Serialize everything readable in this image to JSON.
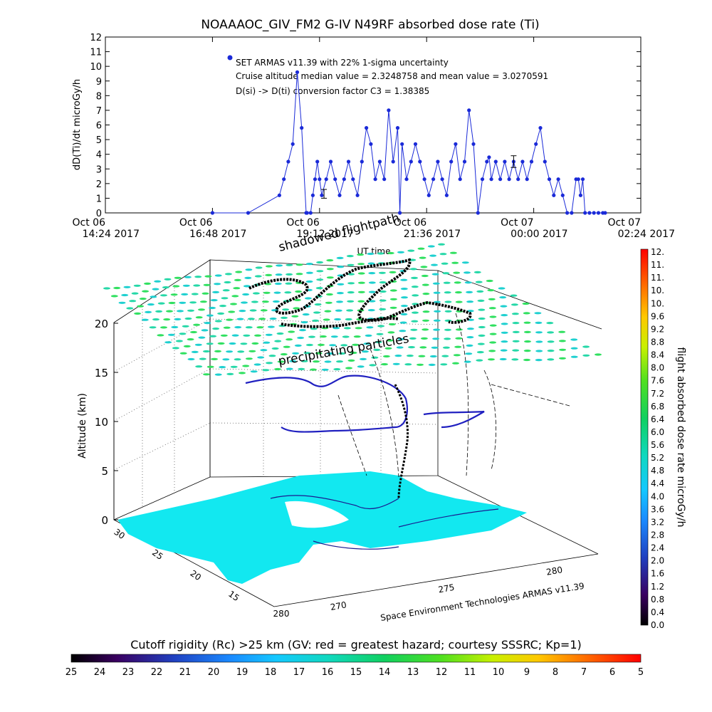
{
  "title": "NOAAAOC_GIV_FM2 G-IV    N49RF  absorbed dose rate (Ti)",
  "annotations": {
    "line1": "SET ARMAS v11.39 with 22% 1-sigma uncertainty",
    "line2": "Cruise altitude median value = 2.3248758 and mean value = 3.0270591",
    "line3": "D(si) -> D(ti) conversion factor C3 = 1.38385"
  },
  "colorbar_right_label": "flight absorbed dose rate microGy/h",
  "colorbar_right_ticks": [
    "0.0",
    "0.4",
    "0.8",
    "1.2",
    "1.6",
    "2.0",
    "2.4",
    "2.8",
    "3.2",
    "3.6",
    "4.0",
    "4.4",
    "4.8",
    "5.2",
    "5.6",
    "6.0",
    "6.4",
    "6.8",
    "7.2",
    "7.6",
    "8.0",
    "8.4",
    "8.8",
    "9.2",
    "9.6",
    "10.",
    "10.",
    "11.",
    "11.",
    "12."
  ],
  "colorbar_bottom_label": "Cutoff rigidity (Rc) >25 km (GV: red = greatest hazard; courtesy SSSRC; Kp=1)",
  "colorbar_bottom_ticks": [
    "25",
    "24",
    "23",
    "22",
    "21",
    "20",
    "19",
    "18",
    "17",
    "16",
    "15",
    "14",
    "13",
    "12",
    "11",
    "10",
    "9",
    "8",
    "7",
    "6",
    "5"
  ],
  "panel3d": {
    "label_shadowed": "shadowed flightpath",
    "label_particles": "precipitating particles",
    "z_label": "Altitude (km)",
    "z_ticks": [
      "0",
      "5",
      "10",
      "15",
      "20"
    ],
    "y_ticks": [
      "30",
      "25",
      "20",
      "15"
    ],
    "x_ticks": [
      "270",
      "275",
      "280"
    ],
    "x_tick_left": "280",
    "credit": "Space Environment Technologies ARMAS v11.39"
  },
  "chart_data": {
    "type": "scatter",
    "xlabel": "UT time",
    "ylabel": "dD(Ti)/dt microGy/h",
    "ylim": [
      0,
      12
    ],
    "yticks": [
      "0",
      "1",
      "2",
      "3",
      "4",
      "5",
      "6",
      "7",
      "8",
      "9",
      "10",
      "11",
      "12"
    ],
    "xticks": [
      {
        "l1": "Oct 06",
        "l2": "14:24 2017"
      },
      {
        "l1": "Oct 06",
        "l2": "16:48 2017"
      },
      {
        "l1": "Oct 06",
        "l2": "19:12 2017"
      },
      {
        "l1": "Oct 06",
        "l2": "21:36 2017"
      },
      {
        "l1": "Oct 07",
        "l2": "00:00 2017"
      },
      {
        "l1": "Oct 07",
        "l2": "02:24 2017"
      }
    ],
    "xlim_hours": [
      14.4,
      26.4
    ],
    "series": [
      {
        "x": [
          16.8,
          17.6,
          18.3,
          18.4,
          18.5,
          18.6,
          18.7,
          18.8,
          18.9,
          18.92,
          19.0,
          19.05,
          19.1,
          19.15,
          19.2,
          19.25,
          19.35,
          19.45,
          19.55,
          19.65,
          19.75,
          19.85,
          19.95,
          20.05,
          20.15,
          20.25,
          20.35,
          20.45,
          20.55,
          20.65,
          20.75,
          20.85,
          20.95,
          21.0,
          21.05,
          21.15,
          21.25,
          21.35,
          21.45,
          21.55,
          21.65,
          21.75,
          21.85,
          21.95,
          22.05,
          22.15,
          22.25,
          22.35,
          22.45,
          22.55,
          22.65,
          22.75,
          22.85,
          22.95,
          23.0,
          23.05,
          23.15,
          23.25,
          23.35,
          23.45,
          23.55,
          23.65,
          23.75,
          23.85,
          23.95,
          24.05,
          24.15,
          24.25,
          24.35,
          24.45,
          24.55,
          24.65,
          24.75,
          24.85,
          24.95,
          25.0,
          25.05,
          25.1,
          25.15,
          25.25,
          25.35,
          25.45,
          25.55,
          25.6
        ],
        "y": [
          0.0,
          0.0,
          1.2,
          2.3,
          3.5,
          4.7,
          9.6,
          5.8,
          0.0,
          0.0,
          0.0,
          1.2,
          2.3,
          3.5,
          2.3,
          1.2,
          2.3,
          3.5,
          2.3,
          1.2,
          2.3,
          3.5,
          2.3,
          1.2,
          3.5,
          5.8,
          4.7,
          2.3,
          3.5,
          2.3,
          7.0,
          3.5,
          5.8,
          0.0,
          4.7,
          2.3,
          3.5,
          4.7,
          3.5,
          2.3,
          1.2,
          2.3,
          3.5,
          2.3,
          1.2,
          3.5,
          4.7,
          2.3,
          3.5,
          7.0,
          4.7,
          0.0,
          2.3,
          3.5,
          3.8,
          2.3,
          3.5,
          2.3,
          3.5,
          2.3,
          3.5,
          2.3,
          3.5,
          2.3,
          3.5,
          4.7,
          5.8,
          3.5,
          2.3,
          1.2,
          2.3,
          1.2,
          0.0,
          0.0,
          2.3,
          2.3,
          1.2,
          2.3,
          0.0,
          0.0,
          0.0,
          0.0,
          0.0,
          0.0
        ]
      }
    ],
    "error_bars": [
      {
        "x": 19.3,
        "y": 1.3,
        "err": 0.3
      },
      {
        "x": 23.55,
        "y": 3.5,
        "err": 0.4
      }
    ]
  }
}
